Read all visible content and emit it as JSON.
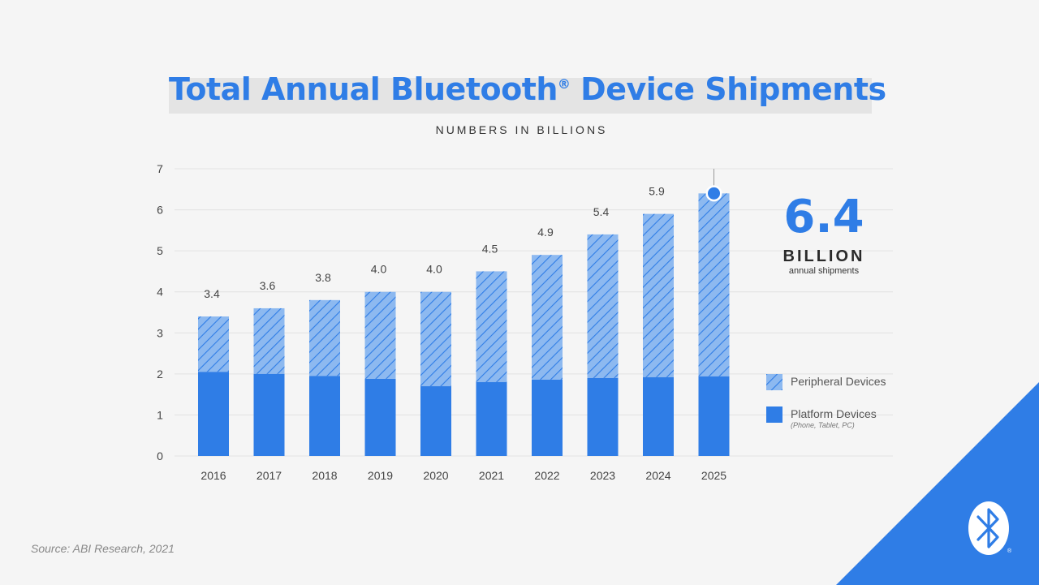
{
  "header": {
    "title": "Total Annual Bluetooth",
    "title_mark": "®",
    "title_rest": " Device Shipments",
    "subtitle": "NUMBERS IN BILLIONS"
  },
  "callout": {
    "value": "6.4",
    "unit": "BILLION",
    "description": "annual shipments"
  },
  "legend": [
    {
      "label": "Peripheral Devices",
      "note": ""
    },
    {
      "label": "Platform Devices",
      "note": "(Phone, Tablet, PC)"
    }
  ],
  "source": "Source: ABI Research, 2021",
  "colors": {
    "platform": "#2f7de6",
    "peripheral": "#8db9f0",
    "peripheral_hatch": "#2f7de6",
    "grid": "#e2e2e2",
    "corner": "#2f7de6"
  },
  "logo": {
    "name": "bluetooth-logo",
    "mark": "®"
  },
  "chart_data": {
    "type": "bar",
    "stacked": true,
    "title": "Total Annual Bluetooth® Device Shipments",
    "subtitle": "NUMBERS IN BILLIONS",
    "xlabel": "",
    "ylabel": "",
    "ylim": [
      0,
      7
    ],
    "yticks": [
      0,
      1,
      2,
      3,
      4,
      5,
      6,
      7
    ],
    "grid": true,
    "legend_position": "right",
    "categories": [
      "2016",
      "2017",
      "2018",
      "2019",
      "2020",
      "2021",
      "2022",
      "2023",
      "2024",
      "2025"
    ],
    "totals": [
      3.4,
      3.6,
      3.8,
      4.0,
      4.0,
      4.5,
      4.9,
      5.4,
      5.9,
      6.4
    ],
    "total_labels": [
      "3.4",
      "3.6",
      "3.8",
      "4.0",
      "4.0",
      "4.5",
      "4.9",
      "5.4",
      "5.9",
      ""
    ],
    "series": [
      {
        "name": "Platform Devices",
        "values": [
          2.05,
          2.0,
          1.95,
          1.88,
          1.7,
          1.8,
          1.86,
          1.9,
          1.92,
          1.94
        ]
      },
      {
        "name": "Peripheral Devices",
        "values": [
          1.35,
          1.6,
          1.85,
          2.12,
          2.3,
          2.7,
          3.04,
          3.5,
          3.98,
          4.46
        ]
      }
    ],
    "highlight": {
      "category": "2025",
      "value": 6.4
    }
  }
}
